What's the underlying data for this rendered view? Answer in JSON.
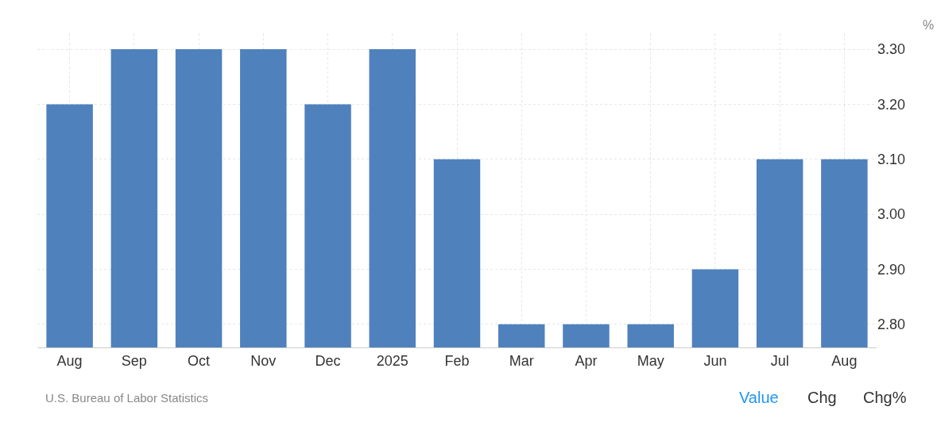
{
  "chart_data": {
    "type": "bar",
    "ylabel": "%",
    "categories": [
      "Aug",
      "Sep",
      "Oct",
      "Nov",
      "Dec",
      "2025",
      "Feb",
      "Mar",
      "Apr",
      "May",
      "Jun",
      "Jul",
      "Aug"
    ],
    "values": [
      3.2,
      3.3,
      3.3,
      3.3,
      3.2,
      3.3,
      3.1,
      2.8,
      2.8,
      2.8,
      2.9,
      3.1,
      3.1
    ],
    "color": "#4f81bd",
    "ylim": [
      2.758,
      3.329
    ],
    "yticks": [
      {
        "value": 2.8,
        "label": "2.80"
      },
      {
        "value": 2.9,
        "label": "2.90"
      },
      {
        "value": 3.0,
        "label": "3.00"
      },
      {
        "value": 3.1,
        "label": "3.10"
      },
      {
        "value": 3.2,
        "label": "3.20"
      },
      {
        "value": 3.3,
        "label": "3.30"
      }
    ],
    "grid": true,
    "annotations": [
      "U.S. Bureau of Labor Statistics",
      "Value",
      "Chg",
      "Chg%"
    ]
  }
}
